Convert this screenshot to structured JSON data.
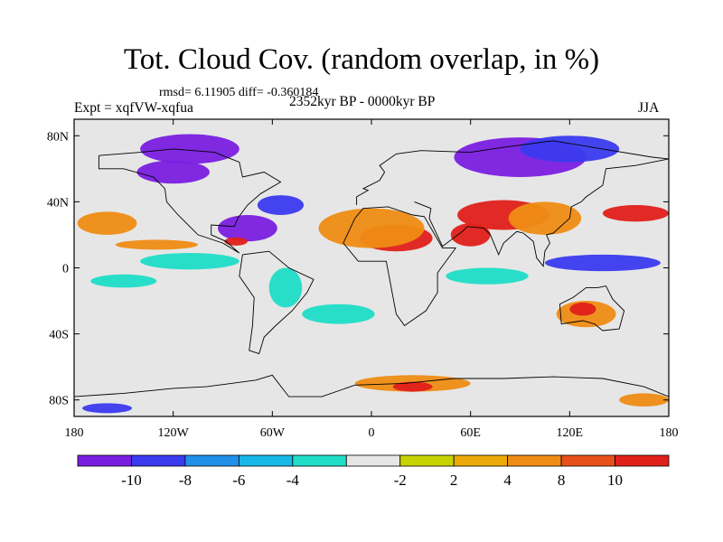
{
  "title": "Tot. Cloud Cov. (random overlap, in %)",
  "stats_line": "rmsd= 6.11905 diff= -0.360184",
  "experiment": "Expt = xqfVW-xqfua",
  "period": "2352kyr BP - 0000kyr BP",
  "season": "JJA",
  "map": {
    "projection": "cylindrical-equidistant",
    "lon_range": [
      -180,
      180
    ],
    "lat_range": [
      -90,
      90
    ],
    "x_ticks": [
      {
        "lon": -180,
        "label": "180"
      },
      {
        "lon": -120,
        "label": "120W"
      },
      {
        "lon": -60,
        "label": "60W"
      },
      {
        "lon": 0,
        "label": "0"
      },
      {
        "lon": 60,
        "label": "60E"
      },
      {
        "lon": 120,
        "label": "120E"
      },
      {
        "lon": 180,
        "label": "180"
      }
    ],
    "y_ticks": [
      {
        "lat": 80,
        "label": "80N"
      },
      {
        "lat": 40,
        "label": "40N"
      },
      {
        "lat": 0,
        "label": "0"
      },
      {
        "lat": -40,
        "label": "40S"
      },
      {
        "lat": -80,
        "label": "80S"
      }
    ],
    "background_color": "#e6e6e6",
    "regions": [
      {
        "name": "arctic-north-america",
        "lon": -110,
        "lat": 72,
        "rx": 30,
        "ry": 9,
        "color": "#7a1fe0"
      },
      {
        "name": "canada-hudson",
        "lon": -120,
        "lat": 58,
        "rx": 22,
        "ry": 7,
        "color": "#7a1fe0"
      },
      {
        "name": "north-atlantic-blue",
        "lon": -55,
        "lat": 38,
        "rx": 14,
        "ry": 6,
        "color": "#3a3aef"
      },
      {
        "name": "gulf-mexico",
        "lon": -75,
        "lat": 24,
        "rx": 18,
        "ry": 8,
        "color": "#7a1fe0"
      },
      {
        "name": "caribbean-red",
        "lon": -82,
        "lat": 16,
        "rx": 7,
        "ry": 2.5,
        "color": "#e0201a"
      },
      {
        "name": "north-pacific-orange",
        "lon": -160,
        "lat": 27,
        "rx": 18,
        "ry": 7,
        "color": "#ef8c14"
      },
      {
        "name": "pacific-orange-band",
        "lon": -130,
        "lat": 14,
        "rx": 25,
        "ry": 3,
        "color": "#ef8c14"
      },
      {
        "name": "east-pacific-cyan",
        "lon": -110,
        "lat": 4,
        "rx": 30,
        "ry": 5,
        "color": "#1fddc7"
      },
      {
        "name": "tropical-pacific-south",
        "lon": -150,
        "lat": -8,
        "rx": 20,
        "ry": 4,
        "color": "#1fddc7"
      },
      {
        "name": "south-america-cyan",
        "lon": -52,
        "lat": -12,
        "rx": 10,
        "ry": 12,
        "color": "#1fddc7"
      },
      {
        "name": "south-atlantic-cyan",
        "lon": -20,
        "lat": -28,
        "rx": 22,
        "ry": 6,
        "color": "#1fddc7"
      },
      {
        "name": "siberia-purple",
        "lon": 90,
        "lat": 67,
        "rx": 40,
        "ry": 12,
        "color": "#7a1fe0"
      },
      {
        "name": "siberia-blue",
        "lon": 120,
        "lat": 72,
        "rx": 30,
        "ry": 8,
        "color": "#3a3aef"
      },
      {
        "name": "north-africa-red",
        "lon": 15,
        "lat": 18,
        "rx": 22,
        "ry": 8,
        "color": "#e0201a"
      },
      {
        "name": "sahara-orange",
        "lon": 0,
        "lat": 24,
        "rx": 32,
        "ry": 12,
        "color": "#ef8c14"
      },
      {
        "name": "arabia-red",
        "lon": 60,
        "lat": 20,
        "rx": 12,
        "ry": 7,
        "color": "#e0201a"
      },
      {
        "name": "central-asia-red",
        "lon": 80,
        "lat": 32,
        "rx": 28,
        "ry": 9,
        "color": "#e0201a"
      },
      {
        "name": "east-asia-orange",
        "lon": 105,
        "lat": 30,
        "rx": 22,
        "ry": 10,
        "color": "#ef8c14"
      },
      {
        "name": "west-pacific-blue",
        "lon": 140,
        "lat": 3,
        "rx": 35,
        "ry": 5,
        "color": "#3a3aef"
      },
      {
        "name": "north-pacific-red",
        "lon": 160,
        "lat": 33,
        "rx": 20,
        "ry": 5,
        "color": "#e0201a"
      },
      {
        "name": "indian-ocean-cyan",
        "lon": 70,
        "lat": -5,
        "rx": 25,
        "ry": 5,
        "color": "#1fddc7"
      },
      {
        "name": "australia-orange",
        "lon": 130,
        "lat": -28,
        "rx": 18,
        "ry": 8,
        "color": "#ef8c14"
      },
      {
        "name": "australia-red",
        "lon": 128,
        "lat": -25,
        "rx": 8,
        "ry": 4,
        "color": "#e0201a"
      },
      {
        "name": "southern-ocean-orange",
        "lon": 25,
        "lat": -70,
        "rx": 35,
        "ry": 5,
        "color": "#ef8c14"
      },
      {
        "name": "antarctic-red",
        "lon": 25,
        "lat": -72,
        "rx": 12,
        "ry": 3,
        "color": "#e0201a"
      },
      {
        "name": "antarctic-blue-west",
        "lon": -160,
        "lat": -85,
        "rx": 15,
        "ry": 3,
        "color": "#3a3aef"
      },
      {
        "name": "antarctic-orange-east",
        "lon": 165,
        "lat": -80,
        "rx": 15,
        "ry": 4,
        "color": "#ef8c14"
      }
    ],
    "coastlines": [
      {
        "name": "north-america",
        "points": [
          [
            -165,
            68
          ],
          [
            -140,
            70
          ],
          [
            -120,
            72
          ],
          [
            -95,
            70
          ],
          [
            -80,
            64
          ],
          [
            -78,
            55
          ],
          [
            -65,
            58
          ],
          [
            -55,
            52
          ],
          [
            -67,
            45
          ],
          [
            -75,
            38
          ],
          [
            -81,
            30
          ],
          [
            -83,
            25
          ],
          [
            -97,
            26
          ],
          [
            -97,
            20
          ],
          [
            -88,
            16
          ],
          [
            -80,
            9
          ],
          [
            -90,
            15
          ],
          [
            -105,
            20
          ],
          [
            -117,
            32
          ],
          [
            -124,
            40
          ],
          [
            -125,
            48
          ],
          [
            -132,
            55
          ],
          [
            -150,
            60
          ],
          [
            -165,
            60
          ],
          [
            -165,
            68
          ]
        ]
      },
      {
        "name": "south-america",
        "points": [
          [
            -78,
            8
          ],
          [
            -62,
            10
          ],
          [
            -50,
            0
          ],
          [
            -35,
            -7
          ],
          [
            -39,
            -15
          ],
          [
            -48,
            -26
          ],
          [
            -58,
            -35
          ],
          [
            -65,
            -42
          ],
          [
            -68,
            -52
          ],
          [
            -74,
            -50
          ],
          [
            -72,
            -35
          ],
          [
            -71,
            -18
          ],
          [
            -80,
            -5
          ],
          [
            -78,
            8
          ]
        ]
      },
      {
        "name": "africa",
        "points": [
          [
            -17,
            15
          ],
          [
            -10,
            30
          ],
          [
            -5,
            36
          ],
          [
            10,
            37
          ],
          [
            25,
            32
          ],
          [
            32,
            31
          ],
          [
            43,
            12
          ],
          [
            51,
            12
          ],
          [
            40,
            -3
          ],
          [
            40,
            -15
          ],
          [
            33,
            -26
          ],
          [
            20,
            -35
          ],
          [
            15,
            -28
          ],
          [
            12,
            -12
          ],
          [
            9,
            4
          ],
          [
            -8,
            4
          ],
          [
            -17,
            15
          ]
        ]
      },
      {
        "name": "europe-asia",
        "points": [
          [
            -9,
            38
          ],
          [
            -9,
            43
          ],
          [
            -2,
            47
          ],
          [
            -5,
            48
          ],
          [
            5,
            53
          ],
          [
            8,
            58
          ],
          [
            5,
            62
          ],
          [
            15,
            69
          ],
          [
            30,
            71
          ],
          [
            60,
            70
          ],
          [
            80,
            73
          ],
          [
            110,
            77
          ],
          [
            140,
            72
          ],
          [
            170,
            67
          ],
          [
            180,
            66
          ]
        ]
      },
      {
        "name": "asia-south",
        "points": [
          [
            26,
            40
          ],
          [
            36,
            36
          ],
          [
            35,
            30
          ],
          [
            43,
            13
          ],
          [
            55,
            22
          ],
          [
            58,
            25
          ],
          [
            68,
            24
          ],
          [
            72,
            20
          ],
          [
            77,
            8
          ],
          [
            80,
            15
          ],
          [
            88,
            22
          ],
          [
            92,
            21
          ],
          [
            98,
            16
          ],
          [
            100,
            6
          ],
          [
            104,
            1
          ],
          [
            105,
            10
          ],
          [
            108,
            15
          ],
          [
            106,
            20
          ],
          [
            110,
            21
          ],
          [
            120,
            30
          ],
          [
            121,
            37
          ],
          [
            127,
            40
          ],
          [
            130,
            43
          ],
          [
            140,
            50
          ],
          [
            142,
            60
          ],
          [
            160,
            62
          ],
          [
            180,
            66
          ]
        ]
      },
      {
        "name": "australia",
        "points": [
          [
            114,
            -22
          ],
          [
            122,
            -18
          ],
          [
            130,
            -12
          ],
          [
            137,
            -12
          ],
          [
            142,
            -11
          ],
          [
            146,
            -19
          ],
          [
            153,
            -26
          ],
          [
            150,
            -37
          ],
          [
            140,
            -38
          ],
          [
            135,
            -34
          ],
          [
            128,
            -32
          ],
          [
            115,
            -34
          ],
          [
            114,
            -22
          ]
        ]
      },
      {
        "name": "antarctica",
        "points": [
          [
            -180,
            -78
          ],
          [
            -150,
            -76
          ],
          [
            -120,
            -73
          ],
          [
            -100,
            -72
          ],
          [
            -70,
            -68
          ],
          [
            -60,
            -65
          ],
          [
            -50,
            -78
          ],
          [
            -30,
            -78
          ],
          [
            -10,
            -71
          ],
          [
            20,
            -70
          ],
          [
            50,
            -67
          ],
          [
            80,
            -67
          ],
          [
            110,
            -66
          ],
          [
            140,
            -67
          ],
          [
            165,
            -72
          ],
          [
            180,
            -78
          ]
        ]
      }
    ]
  },
  "colorbar": {
    "colors": [
      "#7a1fe0",
      "#3a3aef",
      "#2090e8",
      "#16b8e8",
      "#1fddc7",
      "#e6e6e6",
      "#c8d200",
      "#ecaa08",
      "#ef8c14",
      "#e8501a",
      "#e0201a"
    ],
    "labels": [
      "-10",
      "-8",
      "-6",
      "-4",
      "-2",
      "2",
      "4",
      "8",
      "10"
    ]
  }
}
